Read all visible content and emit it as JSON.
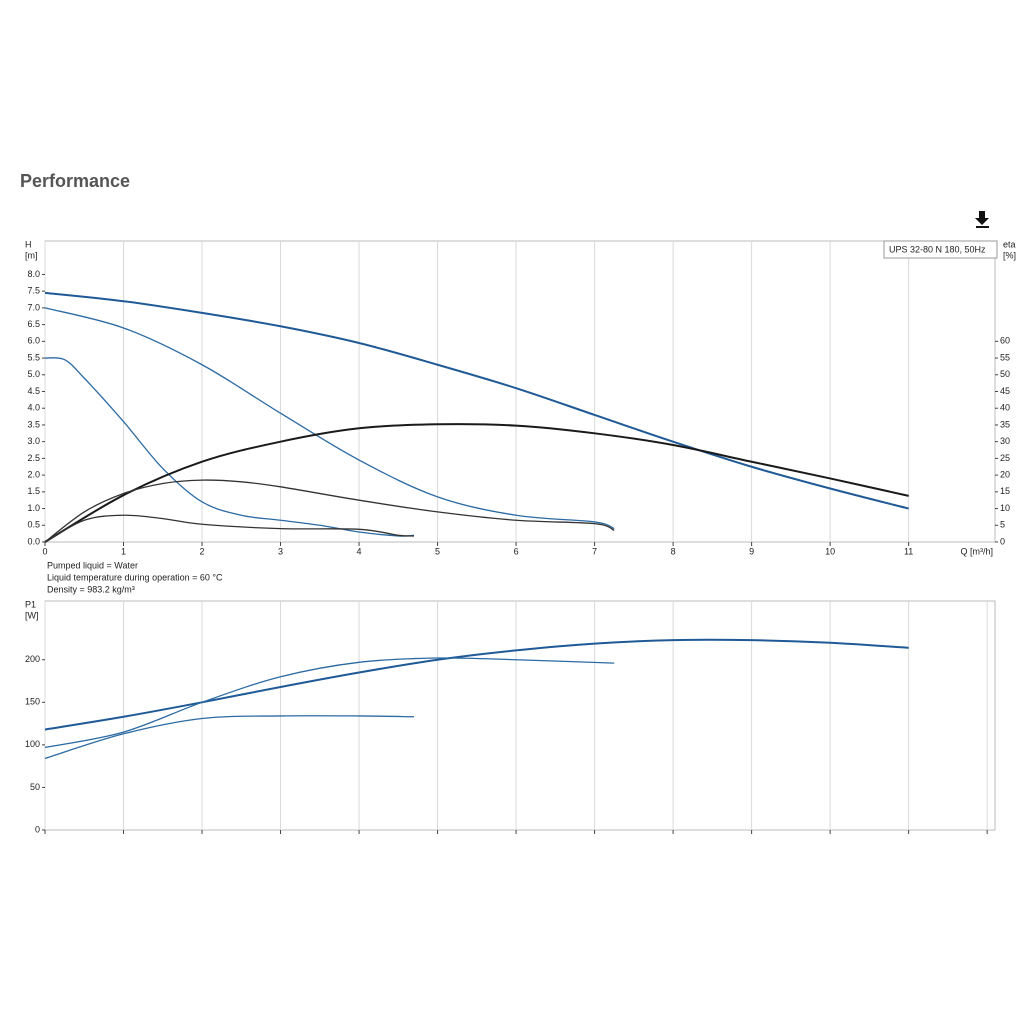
{
  "header": {
    "title": "Performance"
  },
  "chart_data": [
    {
      "type": "line",
      "legend_text": "UPS 32-80 N 180, 50Hz",
      "ylabel": [
        "H",
        "[m]"
      ],
      "y2label": [
        "eta",
        "[%]"
      ],
      "xlabel": "Q [m³/h]",
      "xlim": [
        0,
        12.1
      ],
      "xticks": [
        0,
        1,
        2,
        3,
        4,
        5,
        6,
        7,
        8,
        9,
        10,
        11
      ],
      "grid": true,
      "show_xtick_labels": true,
      "ylim": [
        0,
        9
      ],
      "yticks": [
        {
          "value": 0,
          "label": "0.0"
        },
        0.5,
        {
          "value": 1,
          "label": "1.0"
        },
        1.5,
        {
          "value": 2,
          "label": "2.0"
        },
        2.5,
        {
          "value": 3,
          "label": "3.0"
        },
        3.5,
        {
          "value": 4,
          "label": "4.0"
        },
        4.5,
        {
          "value": 5,
          "label": "5.0"
        },
        5.5,
        {
          "value": 6,
          "label": "6.0"
        },
        6.5,
        {
          "value": 7,
          "label": "7.0"
        },
        7.5,
        {
          "value": 8,
          "label": "8.0"
        }
      ],
      "y2lim": [
        0,
        90
      ],
      "y2ticks": [
        0,
        5,
        10,
        15,
        20,
        25,
        30,
        35,
        40,
        45,
        50,
        55,
        60
      ],
      "series": [
        {
          "color": "#1f5a96",
          "line_width": 2,
          "x": [
            0,
            1,
            2,
            3,
            4,
            5,
            6,
            7,
            8,
            9,
            10,
            11
          ],
          "values": [
            7.45,
            7.2,
            6.85,
            6.45,
            5.95,
            5.3,
            4.6,
            3.8,
            3.0,
            2.25,
            1.6,
            1.0
          ]
        },
        {
          "color": "#2b6aa3",
          "line_width": 1.3,
          "x": [
            0,
            1,
            2,
            3,
            4,
            5,
            6,
            7,
            7.25
          ],
          "values": [
            7.0,
            6.4,
            5.3,
            3.85,
            2.45,
            1.35,
            0.8,
            0.6,
            0.4
          ]
        },
        {
          "color": "#2b6aa3",
          "line_width": 1.3,
          "x": [
            0,
            0.25,
            0.5,
            1,
            1.5,
            2,
            2.5,
            3,
            3.5,
            4,
            4.5,
            4.7
          ],
          "values": [
            5.5,
            5.45,
            4.9,
            3.6,
            2.2,
            1.2,
            0.8,
            0.65,
            0.5,
            0.3,
            0.18,
            0.2
          ]
        },
        {
          "color": "#1a1a1a",
          "line_width": 2,
          "axis": "y2",
          "x": [
            0,
            1,
            2,
            3,
            4,
            5,
            6,
            7,
            8,
            9,
            10,
            11
          ],
          "values": [
            0,
            14,
            24,
            30,
            34,
            35.2,
            34.8,
            32.5,
            29,
            24,
            19,
            13.8
          ]
        },
        {
          "color": "#333333",
          "line_width": 1.3,
          "axis": "y2",
          "x": [
            0,
            0.5,
            1,
            1.5,
            2,
            2.5,
            3,
            4,
            5,
            6,
            7,
            7.25
          ],
          "values": [
            0,
            9,
            14.5,
            17.5,
            18.5,
            18,
            16.5,
            12.5,
            9,
            6.5,
            5.5,
            3.5
          ]
        },
        {
          "color": "#333333",
          "line_width": 1.3,
          "axis": "y2",
          "x": [
            0,
            0.5,
            1,
            1.5,
            2,
            3,
            4,
            4.5,
            4.7
          ],
          "values": [
            0,
            6.5,
            8,
            7,
            5.3,
            4,
            3.8,
            2,
            1.8
          ]
        }
      ],
      "notes": [
        "Pumped liquid = Water",
        "Liquid temperature during operation = 60 °C",
        "Density = 983.2 kg/m³"
      ]
    },
    {
      "type": "line",
      "ylabel": [
        "P1",
        "[W]"
      ],
      "xlim": [
        0,
        12.1
      ],
      "xticks": [
        0,
        1,
        2,
        3,
        4,
        5,
        6,
        7,
        8,
        9,
        10,
        11,
        12
      ],
      "grid": true,
      "show_xtick_labels": false,
      "ylim": [
        0,
        269
      ],
      "yticks": [
        0,
        50,
        100,
        150,
        200
      ],
      "series": [
        {
          "color": "#1f5a96",
          "line_width": 2,
          "x": [
            0,
            1,
            2,
            3,
            4,
            5,
            6,
            7,
            8,
            9,
            10,
            11
          ],
          "values": [
            118,
            133,
            150,
            168,
            185,
            200,
            211,
            219,
            223,
            223,
            220,
            214
          ]
        },
        {
          "color": "#2b6aa3",
          "line_width": 1.3,
          "x": [
            0,
            1,
            2,
            3,
            4,
            5,
            6,
            7.25
          ],
          "values": [
            97,
            115,
            150,
            180,
            197,
            202,
            200,
            196
          ]
        },
        {
          "color": "#2b6aa3",
          "line_width": 1.3,
          "x": [
            0,
            1,
            2,
            3,
            4,
            4.7
          ],
          "values": [
            84,
            113,
            131,
            134,
            134,
            133
          ]
        }
      ]
    }
  ]
}
